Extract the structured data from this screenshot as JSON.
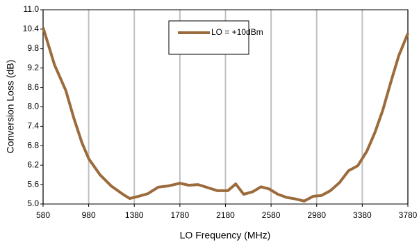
{
  "chart_data": {
    "type": "line",
    "x_label": "LO Frequency (MHz)",
    "y_label": "Conversion Loss (dB)",
    "x": [
      580,
      680,
      780,
      850,
      920,
      980,
      1080,
      1180,
      1280,
      1340,
      1420,
      1500,
      1590,
      1680,
      1780,
      1860,
      1940,
      2030,
      2110,
      2200,
      2270,
      2340,
      2420,
      2490,
      2560,
      2640,
      2720,
      2790,
      2870,
      2950,
      3020,
      3100,
      3180,
      3260,
      3340,
      3420,
      3490,
      3560,
      3630,
      3700,
      3780
    ],
    "series": [
      {
        "name": "LO = +10dBm",
        "color": "#9c6b3c",
        "values": [
          10.45,
          9.3,
          8.5,
          7.65,
          6.9,
          6.4,
          5.9,
          5.55,
          5.3,
          5.17,
          5.24,
          5.32,
          5.52,
          5.56,
          5.64,
          5.58,
          5.6,
          5.5,
          5.41,
          5.41,
          5.62,
          5.3,
          5.38,
          5.53,
          5.47,
          5.3,
          5.2,
          5.16,
          5.09,
          5.24,
          5.26,
          5.41,
          5.66,
          6.03,
          6.18,
          6.63,
          7.2,
          7.9,
          8.76,
          9.58,
          10.27
        ]
      }
    ],
    "xlim": [
      580,
      3780
    ],
    "xticks": [
      580,
      980,
      1380,
      1780,
      2180,
      2580,
      2980,
      3380,
      3780
    ],
    "ylim": [
      5.0,
      11.0
    ],
    "yticks": [
      {
        "value": 5.0,
        "label": "5.0"
      },
      5.6,
      6.2,
      6.8,
      7.4,
      {
        "value": 8.0,
        "label": "8.0"
      },
      8.6,
      9.2,
      9.8,
      10.4,
      {
        "value": 11.0,
        "label": "11.0"
      }
    ],
    "grid": "x"
  }
}
